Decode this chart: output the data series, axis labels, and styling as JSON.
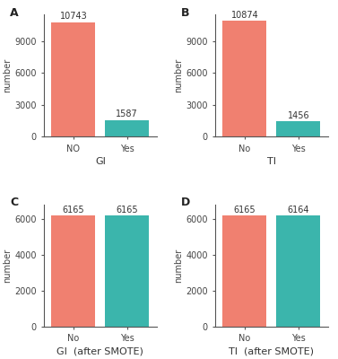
{
  "panels": [
    {
      "label": "A",
      "categories": [
        "NO",
        "Yes"
      ],
      "values": [
        10743,
        1587
      ],
      "colors": [
        "#F08070",
        "#3BB5AC"
      ],
      "xlabel": "GI",
      "ylabel": "number",
      "ylim": [
        0,
        11500
      ],
      "yticks": [
        0,
        3000,
        6000,
        9000
      ]
    },
    {
      "label": "B",
      "categories": [
        "No",
        "Yes"
      ],
      "values": [
        10874,
        1456
      ],
      "colors": [
        "#F08070",
        "#3BB5AC"
      ],
      "xlabel": "TI",
      "ylabel": "number",
      "ylim": [
        0,
        11500
      ],
      "yticks": [
        0,
        3000,
        6000,
        9000
      ]
    },
    {
      "label": "C",
      "categories": [
        "No",
        "Yes"
      ],
      "values": [
        6165,
        6165
      ],
      "colors": [
        "#F08070",
        "#3BB5AC"
      ],
      "xlabel": "GI  (after SMOTE)",
      "ylabel": "number",
      "ylim": [
        0,
        6800
      ],
      "yticks": [
        0,
        2000,
        4000,
        6000
      ]
    },
    {
      "label": "D",
      "categories": [
        "No",
        "Yes"
      ],
      "values": [
        6165,
        6164
      ],
      "colors": [
        "#F08070",
        "#3BB5AC"
      ],
      "xlabel": "TI  (after SMOTE)",
      "ylabel": "number",
      "ylim": [
        0,
        6800
      ],
      "yticks": [
        0,
        2000,
        4000,
        6000
      ]
    }
  ],
  "background_color": "#ffffff",
  "bar_width": 0.82,
  "label_fontsize": 8,
  "panel_label_fontsize": 9,
  "value_fontsize": 7,
  "tick_fontsize": 7,
  "ylabel_fontsize": 7
}
